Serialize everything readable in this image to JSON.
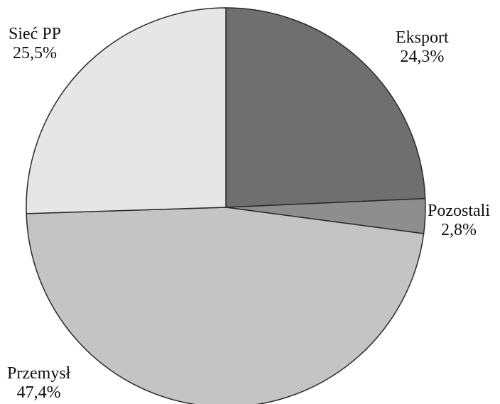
{
  "chart_data": {
    "type": "pie",
    "start_angle_deg": 0,
    "direction": "clockwise",
    "slices": [
      {
        "label": "Eksport",
        "value_text": "24,3%",
        "value": 24.3,
        "color": "#6f6f6f"
      },
      {
        "label": "Pozostali",
        "value_text": "2,8%",
        "value": 2.8,
        "color": "#8e8e8e"
      },
      {
        "label": "Przemysł",
        "value_text": "47,4%",
        "value": 47.4,
        "color": "#c4c4c4"
      },
      {
        "label": "Sieć PP",
        "value_text": "25,5%",
        "value": 25.5,
        "color": "#e6e6e6"
      }
    ],
    "title": "",
    "legend": "none"
  }
}
